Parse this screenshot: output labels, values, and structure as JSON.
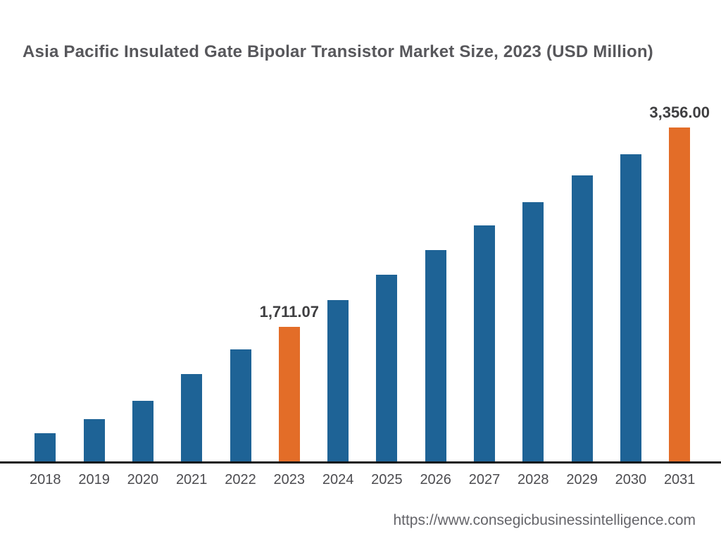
{
  "header": {
    "title": "Asia Pacific Insulated Gate Bipolar Transistor Market Size, 2023 (USD Million)"
  },
  "footer": {
    "source_url": "https://www.consegicbusinessintelligence.com"
  },
  "colors": {
    "bar_default": "#1e6396",
    "bar_highlight": "#e36d28",
    "axis_line": "#161616",
    "title_text": "#57575b",
    "data_label_text": "#3f3f41",
    "tick_text": "#4c4c50",
    "url_text": "#65656a"
  },
  "chart_data": {
    "type": "bar",
    "title": "Asia Pacific Insulated Gate Bipolar Transistor Market Size, 2023 (USD Million)",
    "xlabel": "",
    "ylabel": "",
    "categories": [
      "2018",
      "2019",
      "2020",
      "2021",
      "2022",
      "2023",
      "2024",
      "2025",
      "2026",
      "2027",
      "2028",
      "2029",
      "2030",
      "2031"
    ],
    "values": [
      833,
      950,
      1101,
      1322,
      1525,
      1711.07,
      1932,
      2141,
      2345,
      2548,
      2740,
      2961,
      3135,
      3356
    ],
    "highlighted_categories": [
      "2023",
      "2031"
    ],
    "data_labels": {
      "2023": "1,711.07",
      "2031": "3,356.00"
    },
    "ylim": [
      600,
      3500
    ],
    "grid": false,
    "legend": false,
    "value_axis_visible": false
  }
}
